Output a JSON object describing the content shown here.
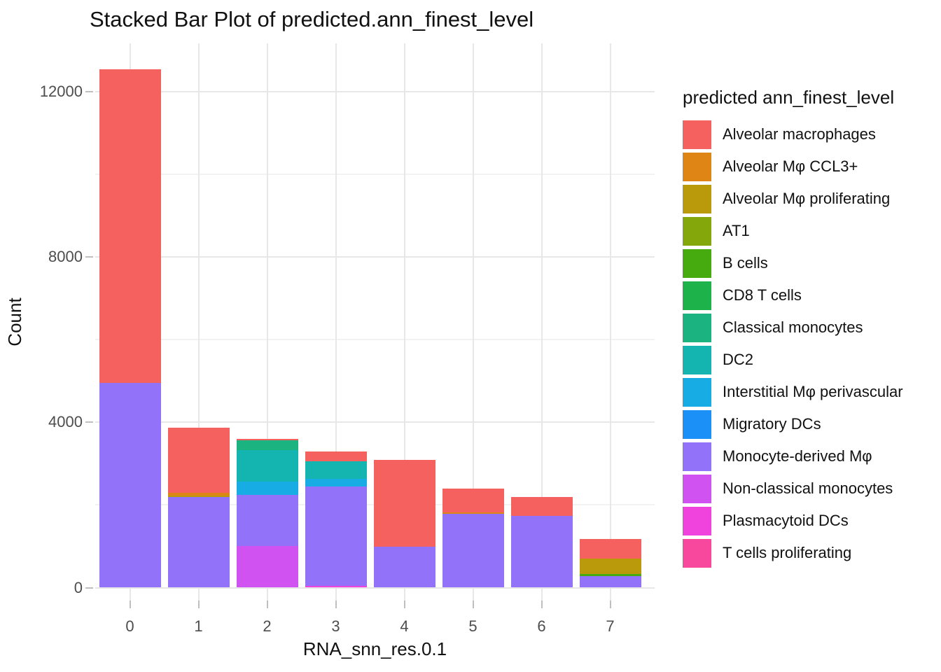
{
  "title": "Stacked Bar Plot of predicted.ann_finest_level",
  "axes": {
    "x": {
      "label": "RNA_snn_res.0.1",
      "tick_labels": [
        "0",
        "1",
        "2",
        "3",
        "4",
        "5",
        "6",
        "7"
      ]
    },
    "y": {
      "label": "Count",
      "tick_labels": [
        "0",
        "4000",
        "8000",
        "12000"
      ],
      "tick_values": [
        0,
        4000,
        8000,
        12000
      ],
      "minor_tick_values": [
        2000,
        6000,
        10000
      ]
    }
  },
  "legend": {
    "title": "predicted ann_finest_level",
    "position": "right"
  },
  "chart_data": {
    "type": "bar",
    "stacked": true,
    "title": "Stacked Bar Plot of predicted.ann_finest_level",
    "xlabel": "RNA_snn_res.0.1",
    "ylabel": "Count",
    "ylim": [
      0,
      13200
    ],
    "grid": true,
    "legend_position": "right",
    "categories": [
      "0",
      "1",
      "2",
      "3",
      "4",
      "5",
      "6",
      "7"
    ],
    "series": [
      {
        "name": "Alveolar macrophages",
        "color": "#F4615E",
        "values": [
          7600,
          1580,
          40,
          240,
          2100,
          580,
          470,
          470
        ]
      },
      {
        "name": "Alveolar Mφ CCL3+",
        "color": "#DE8516",
        "values": [
          0,
          60,
          0,
          0,
          0,
          40,
          0,
          0
        ]
      },
      {
        "name": "Alveolar Mφ proliferating",
        "color": "#BA990B",
        "values": [
          0,
          40,
          0,
          0,
          0,
          0,
          0,
          380
        ]
      },
      {
        "name": "AT1",
        "color": "#84A80C",
        "values": [
          0,
          0,
          0,
          0,
          0,
          0,
          0,
          0
        ]
      },
      {
        "name": "B cells",
        "color": "#45AB0F",
        "values": [
          0,
          0,
          0,
          0,
          0,
          0,
          0,
          45
        ]
      },
      {
        "name": "CD8 T cells",
        "color": "#1DB24A",
        "values": [
          0,
          0,
          0,
          0,
          0,
          0,
          0,
          0
        ]
      },
      {
        "name": "Classical monocytes",
        "color": "#1BB380",
        "values": [
          0,
          0,
          240,
          0,
          0,
          0,
          0,
          0
        ]
      },
      {
        "name": "DC2",
        "color": "#14B5B0",
        "values": [
          0,
          0,
          750,
          420,
          0,
          0,
          0,
          0
        ]
      },
      {
        "name": "Interstitial Mφ perivascular",
        "color": "#17ACE3",
        "values": [
          0,
          0,
          320,
          180,
          0,
          0,
          0,
          0
        ]
      },
      {
        "name": "Migratory DCs",
        "color": "#1B90F7",
        "values": [
          0,
          0,
          0,
          0,
          0,
          0,
          0,
          0
        ]
      },
      {
        "name": "Monocyte-derived Mφ",
        "color": "#9372FA",
        "values": [
          4950,
          2190,
          1250,
          2420,
          990,
          1780,
          1730,
          285
        ]
      },
      {
        "name": "Non-classical monocytes",
        "color": "#D052F0",
        "values": [
          0,
          0,
          1000,
          0,
          0,
          0,
          0,
          0
        ]
      },
      {
        "name": "Plasmacytoid DCs",
        "color": "#F042DC",
        "values": [
          0,
          0,
          0,
          35,
          0,
          0,
          0,
          0
        ]
      },
      {
        "name": "T cells proliferating",
        "color": "#F8489E",
        "values": [
          0,
          0,
          0,
          0,
          0,
          0,
          0,
          0
        ]
      }
    ]
  }
}
